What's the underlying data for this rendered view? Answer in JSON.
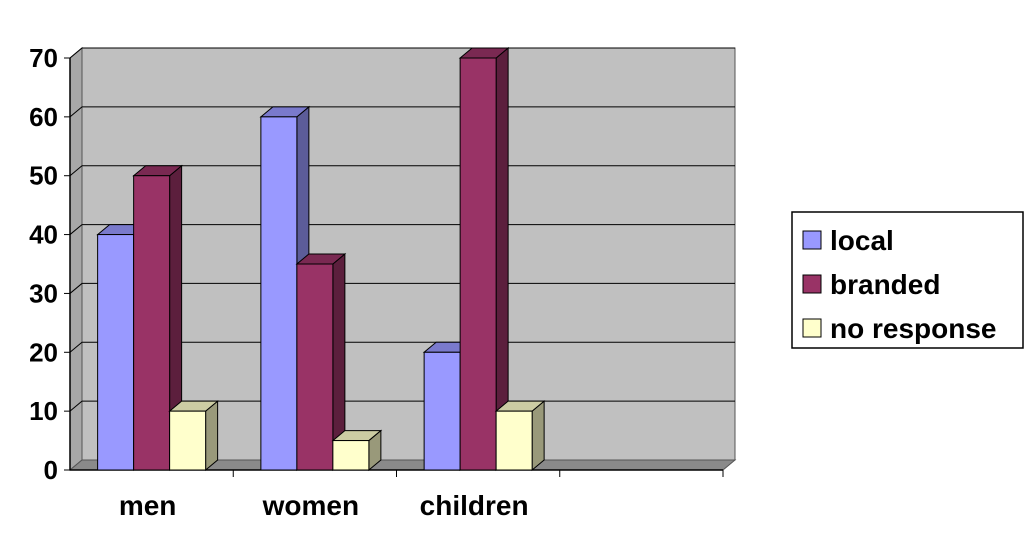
{
  "chart_data": {
    "type": "bar",
    "style": "3d-clustered-column",
    "categories": [
      "men",
      "women",
      "children"
    ],
    "series": [
      {
        "name": "local",
        "values": [
          40,
          60,
          20
        ],
        "color": "#9999FF"
      },
      {
        "name": "branded",
        "values": [
          50,
          35,
          70
        ],
        "color": "#993366"
      },
      {
        "name": "no response",
        "values": [
          10,
          5,
          10
        ],
        "color": "#FFFFCC"
      }
    ],
    "ylim": [
      0,
      70
    ],
    "yticks": [
      "0",
      "10",
      "20",
      "30",
      "40",
      "50",
      "60",
      "70"
    ],
    "grid": true,
    "plot_background": "#C0C0C0",
    "legend_position": "right"
  }
}
